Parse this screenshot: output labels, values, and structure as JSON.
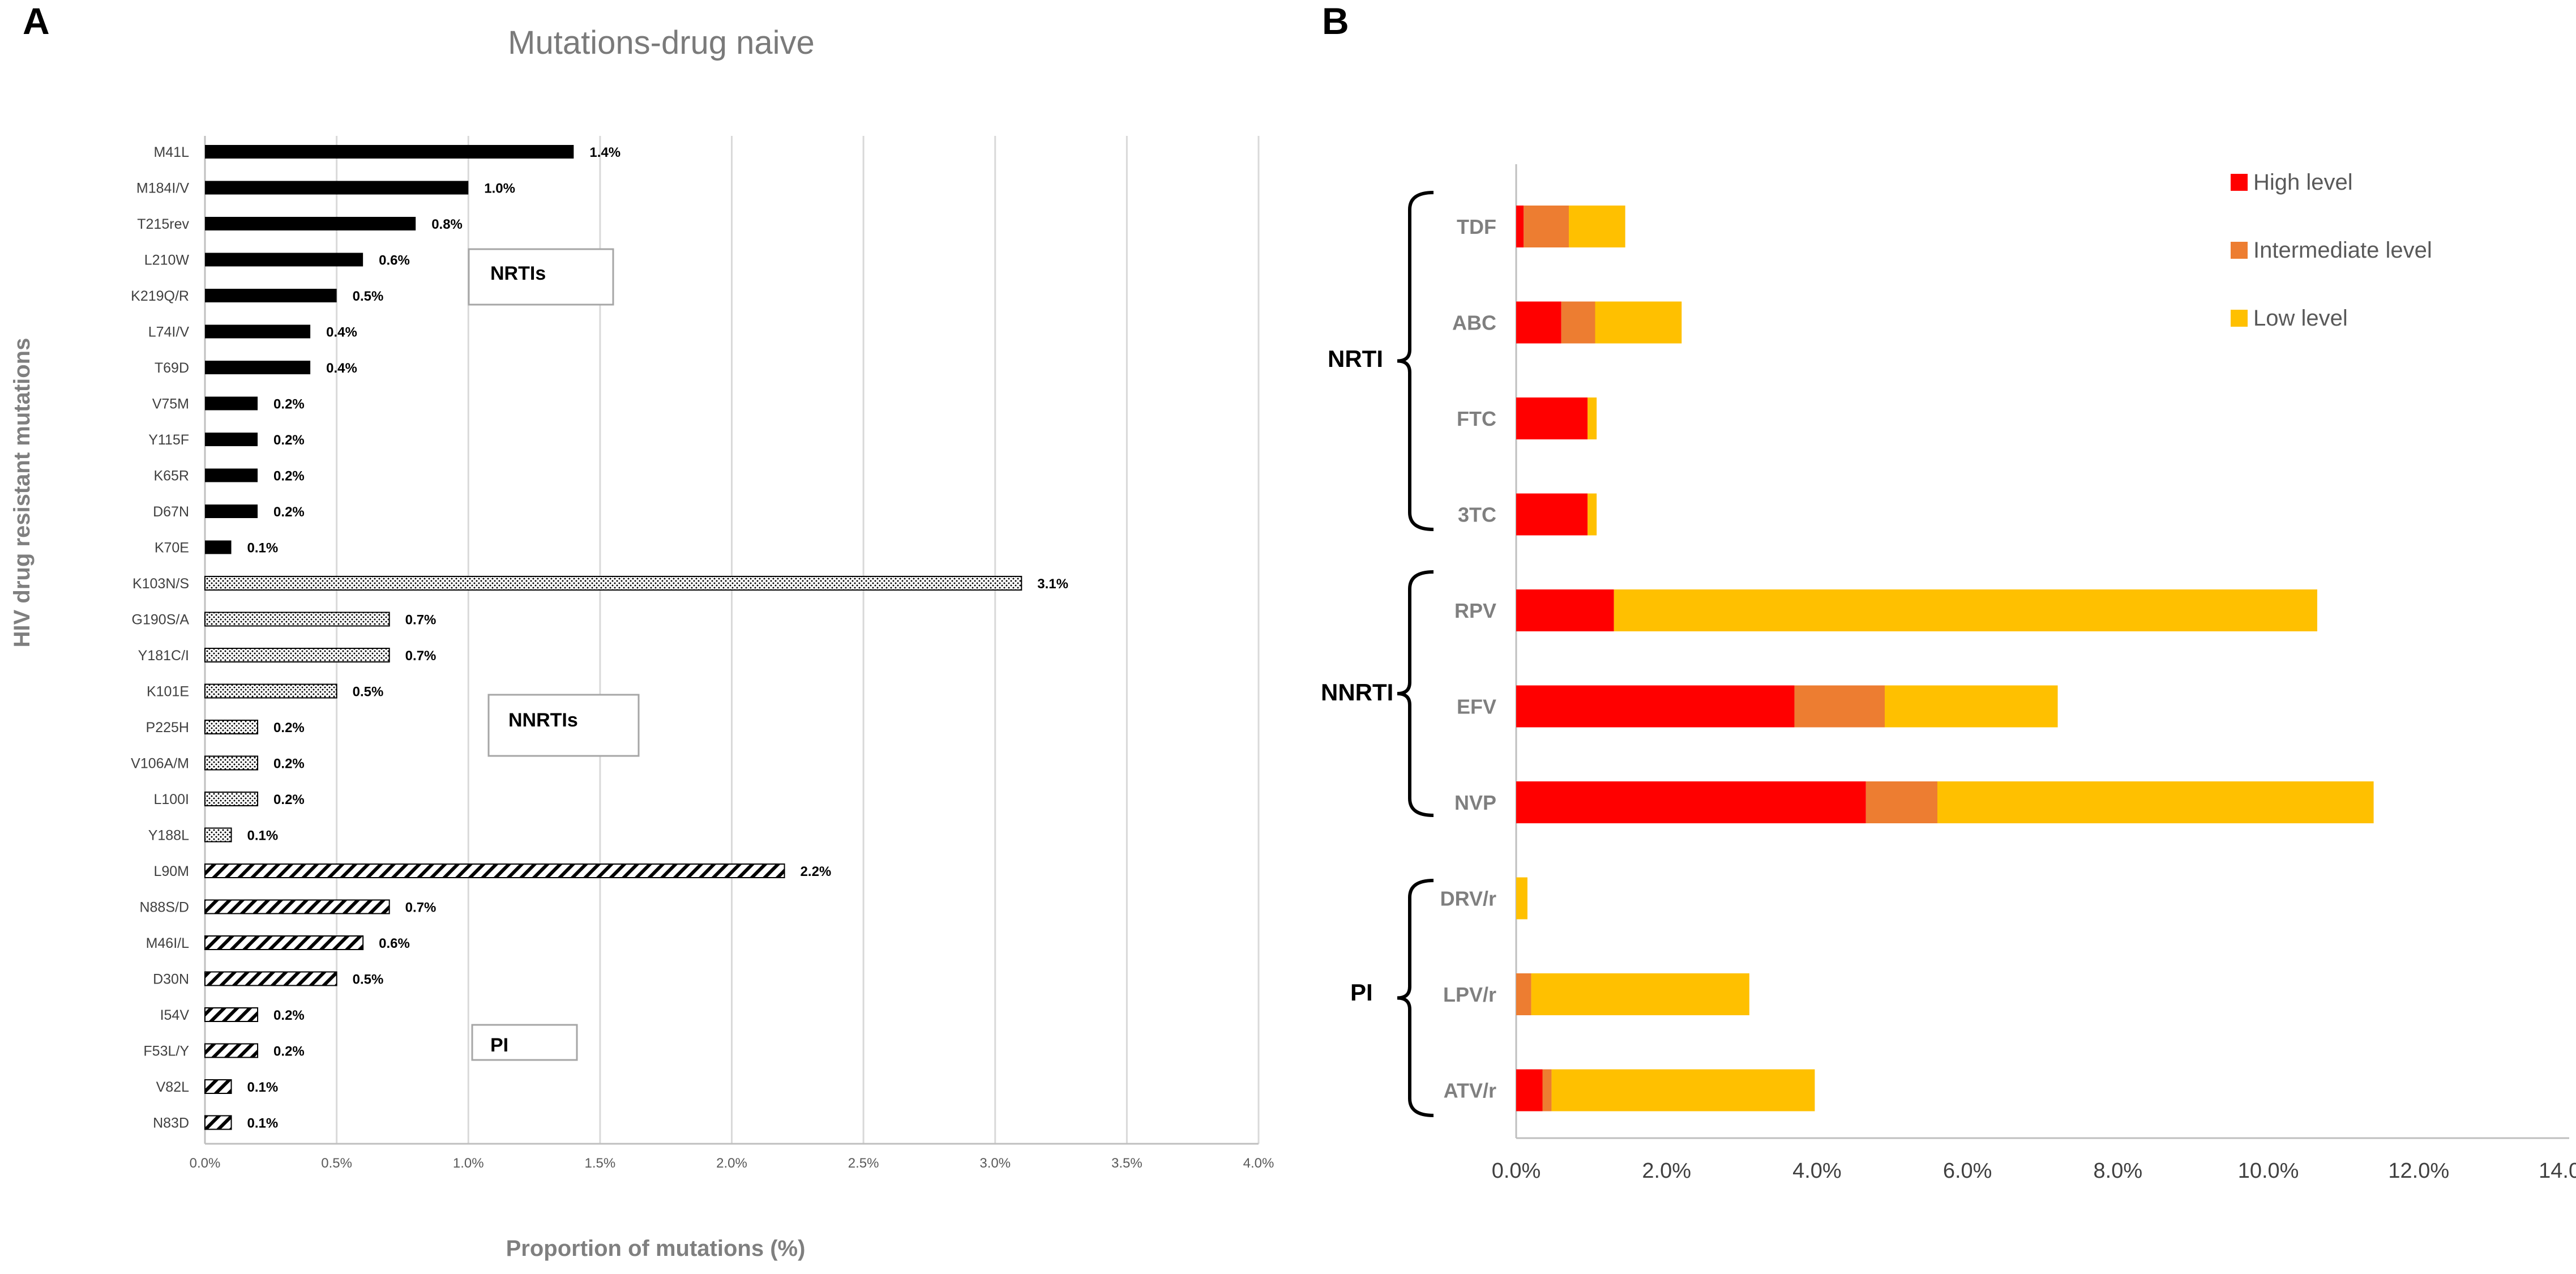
{
  "panels": {
    "a_letter": "A",
    "b_letter": "B"
  },
  "chart_data": [
    {
      "type": "bar",
      "orientation": "horizontal",
      "title": "Mutations-drug naive",
      "xlabel": "Proportion of mutations (%)",
      "ylabel": "HIV drug resistant mutations",
      "xlim": [
        0,
        4.0
      ],
      "xticks": [
        "0.0%",
        "0.5%",
        "1.0%",
        "1.5%",
        "2.0%",
        "2.5%",
        "3.0%",
        "3.5%",
        "4.0%"
      ],
      "grid": true,
      "groups": [
        {
          "label": "NRTIs",
          "pattern": "solid",
          "categories": [
            "M41L",
            "M184I/V",
            "T215rev",
            "L210W",
            "K219Q/R",
            "L74I/V",
            "T69D",
            "V75M",
            "Y115F",
            "K65R",
            "D67N",
            "K70E"
          ],
          "values": [
            1.4,
            1.0,
            0.8,
            0.6,
            0.5,
            0.4,
            0.4,
            0.2,
            0.2,
            0.2,
            0.2,
            0.1
          ],
          "labels": [
            "1.4%",
            "1.0%",
            "0.8%",
            "0.6%",
            "0.5%",
            "0.4%",
            "0.4%",
            "0.2%",
            "0.2%",
            "0.2%",
            "0.2%",
            "0.1%"
          ]
        },
        {
          "label": "NNRTIs",
          "pattern": "dotted",
          "categories": [
            "K103N/S",
            "G190S/A",
            "Y181C/I",
            "K101E",
            "P225H",
            "V106A/M",
            "L100I",
            "Y188L"
          ],
          "values": [
            3.1,
            0.7,
            0.7,
            0.5,
            0.2,
            0.2,
            0.2,
            0.1
          ],
          "labels": [
            "3.1%",
            "0.7%",
            "0.7%",
            "0.5%",
            "0.2%",
            "0.2%",
            "0.2%",
            "0.1%"
          ]
        },
        {
          "label": "PI",
          "pattern": "diagonal",
          "categories": [
            "L90M",
            "N88S/D",
            "M46I/L",
            "D30N",
            "I54V",
            "F53L/Y",
            "V82L",
            "N83D"
          ],
          "values": [
            2.2,
            0.7,
            0.6,
            0.5,
            0.2,
            0.2,
            0.1,
            0.1
          ],
          "labels": [
            "2.2%",
            "0.7%",
            "0.6%",
            "0.5%",
            "0.2%",
            "0.2%",
            "0.1%",
            "0.1%"
          ]
        }
      ]
    },
    {
      "type": "bar",
      "orientation": "horizontal",
      "stacked": true,
      "xlim": [
        0,
        14.0
      ],
      "xticks": [
        "0.0%",
        "2.0%",
        "4.0%",
        "6.0%",
        "8.0%",
        "10.0%",
        "12.0%",
        "14.0%"
      ],
      "legend_position": "top-right",
      "colors": {
        "High level": "#ff0000",
        "Intermediate level": "#ed7d31",
        "Low level": "#ffc000"
      },
      "series": [
        {
          "name": "High level",
          "values": [
            0.1,
            0.6,
            0.95,
            0.95,
            1.3,
            3.7,
            4.65,
            0,
            0,
            0.35
          ]
        },
        {
          "name": "Intermediate level",
          "values": [
            0.6,
            0.45,
            0,
            0,
            0,
            1.2,
            0.95,
            0,
            0.2,
            0.12
          ]
        },
        {
          "name": "Low level",
          "values": [
            0.75,
            1.15,
            0.12,
            0.12,
            9.35,
            2.3,
            5.8,
            0.15,
            2.9,
            3.5
          ]
        }
      ],
      "groups": [
        {
          "label": "NRTI",
          "categories": [
            "TDF",
            "ABC",
            "FTC",
            "3TC"
          ]
        },
        {
          "label": "NNRTI",
          "categories": [
            "RPV",
            "EFV",
            "NVP"
          ]
        },
        {
          "label": "PI",
          "categories": [
            "DRV/r",
            "LPV/r",
            "ATV/r"
          ]
        }
      ]
    }
  ]
}
